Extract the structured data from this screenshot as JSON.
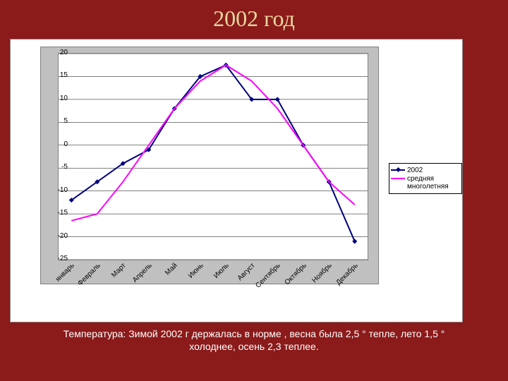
{
  "title": "2002 год",
  "caption_line1": "Температура: Зимой 2002 г держалась в норме , весна была 2,5 ° тепле, лето 1,5 °",
  "caption_line2": "холоднее, осень 2,3 теплее.",
  "chart": {
    "type": "line",
    "background_color": "#ffffff",
    "plot_frame_color": "#c0c0c0",
    "grid_color": "#000000",
    "ylim": [
      -25,
      20
    ],
    "ytick_step": 5,
    "yticks": [
      20,
      15,
      10,
      5,
      0,
      -5,
      -10,
      -15,
      -20,
      -25
    ],
    "categories": [
      "январь",
      "Февраль",
      "Март",
      "Апрель",
      "Май",
      "Июнь",
      "Июль",
      "Август",
      "Сентябрь",
      "Октябрь",
      "Ноябрь",
      "Декабрь"
    ],
    "series": [
      {
        "name": "2002",
        "color": "#000080",
        "marker": "diamond",
        "values": [
          -12,
          -8,
          -4,
          -1,
          8,
          15,
          17.5,
          10,
          10,
          0,
          -8,
          -21
        ]
      },
      {
        "name": "средняя многолетняя",
        "color": "#ff00ff",
        "marker": "none",
        "values": [
          -16.5,
          -15,
          -8,
          0,
          8,
          14,
          17.5,
          14,
          8,
          0,
          -8,
          -13
        ]
      }
    ],
    "legend": {
      "items": [
        "2002",
        "средняя многолетняя"
      ]
    },
    "label_fontsize": 10,
    "line_width": 2
  },
  "slide_bg": "#8b1a1a"
}
